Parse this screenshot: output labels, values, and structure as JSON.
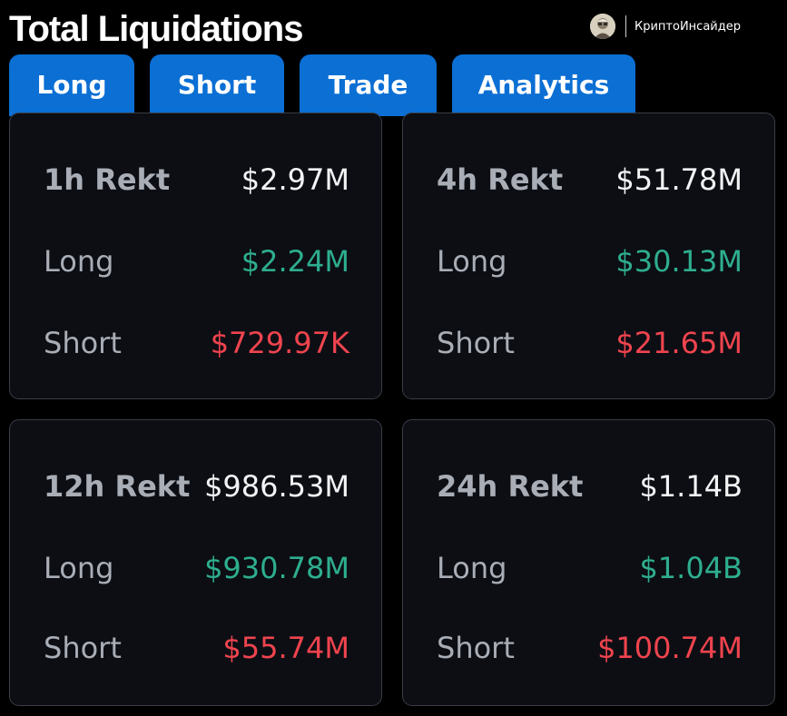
{
  "header": {
    "title": "Total Liquidations",
    "brand_name": "КриптоИнсайдер",
    "brand_avatar_icon": "avatar-icon"
  },
  "tabs": [
    {
      "label": "Long"
    },
    {
      "label": "Short"
    },
    {
      "label": "Trade"
    },
    {
      "label": "Analytics"
    }
  ],
  "colors": {
    "tab_accent": "#0b6fd4",
    "long": "#2eae8e",
    "short": "#f0444e",
    "card_bg": "#0c0e14",
    "page_bg": "#000000"
  },
  "cards": [
    {
      "period_label": "1h Rekt",
      "total": "$2.97M",
      "long_label": "Long",
      "long_value": "$2.24M",
      "short_label": "Short",
      "short_value": "$729.97K"
    },
    {
      "period_label": "4h Rekt",
      "total": "$51.78M",
      "long_label": "Long",
      "long_value": "$30.13M",
      "short_label": "Short",
      "short_value": "$21.65M"
    },
    {
      "period_label": "12h Rekt",
      "total": "$986.53M",
      "long_label": "Long",
      "long_value": "$930.78M",
      "short_label": "Short",
      "short_value": "$55.74M"
    },
    {
      "period_label": "24h Rekt",
      "total": "$1.14B",
      "long_label": "Long",
      "long_value": "$1.04B",
      "short_label": "Short",
      "short_value": "$100.74M"
    }
  ]
}
